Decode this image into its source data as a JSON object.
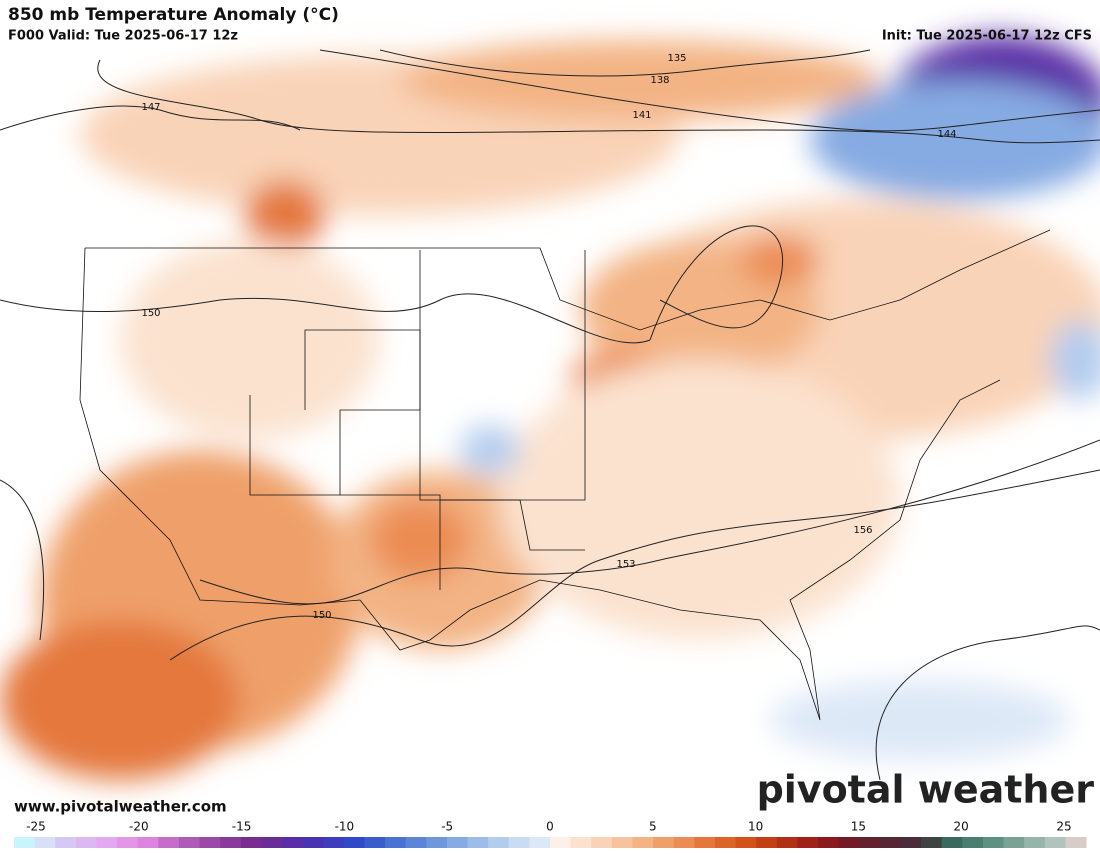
{
  "header": {
    "title": "850 mb Temperature Anomaly (°C)",
    "valid": "F000 Valid: Tue 2025-06-17 12z",
    "init": "Init: Tue 2025-06-17 12z CFS"
  },
  "map": {
    "contour_labels": [
      "135",
      "138",
      "141",
      "144",
      "147",
      "150",
      "150",
      "153",
      "156"
    ]
  },
  "footer": {
    "website": "www.pivotalweather.com",
    "logo": "pivotal weather"
  },
  "colorbar": {
    "ticks": [
      -25,
      -20,
      -15,
      -10,
      -5,
      0,
      5,
      10,
      15,
      20,
      25
    ],
    "colors": [
      "#c8f4fb",
      "#d7e0f6",
      "#d4c9f2",
      "#dcb8f0",
      "#e3a8ef",
      "#e396e6",
      "#de83e0",
      "#c66cc9",
      "#b05ab7",
      "#9c48a8",
      "#8a3a9c",
      "#782e90",
      "#6a2d98",
      "#5a2ea6",
      "#4a33b3",
      "#3d3dbd",
      "#3049c6",
      "#3a5dcc",
      "#4a72d2",
      "#5b85d6",
      "#6f98dc",
      "#86aae2",
      "#9dbce8",
      "#b3ccee",
      "#c9dcf3",
      "#dde8f7",
      "#fdf0e6",
      "#fbe2cf",
      "#f9d3b7",
      "#f6c39e",
      "#f3b384",
      "#efa06a",
      "#eb8c52",
      "#e4783c",
      "#dc6428",
      "#d45218",
      "#c44014",
      "#b23014",
      "#9e2218",
      "#8a1a1e",
      "#741a26",
      "#63202e",
      "#552634",
      "#4a2c3a",
      "#3f4442",
      "#3a6a5e",
      "#4a7e70",
      "#5f9182",
      "#7aa396",
      "#96b5aa",
      "#b0c3bc",
      "#d8ccc8"
    ]
  }
}
